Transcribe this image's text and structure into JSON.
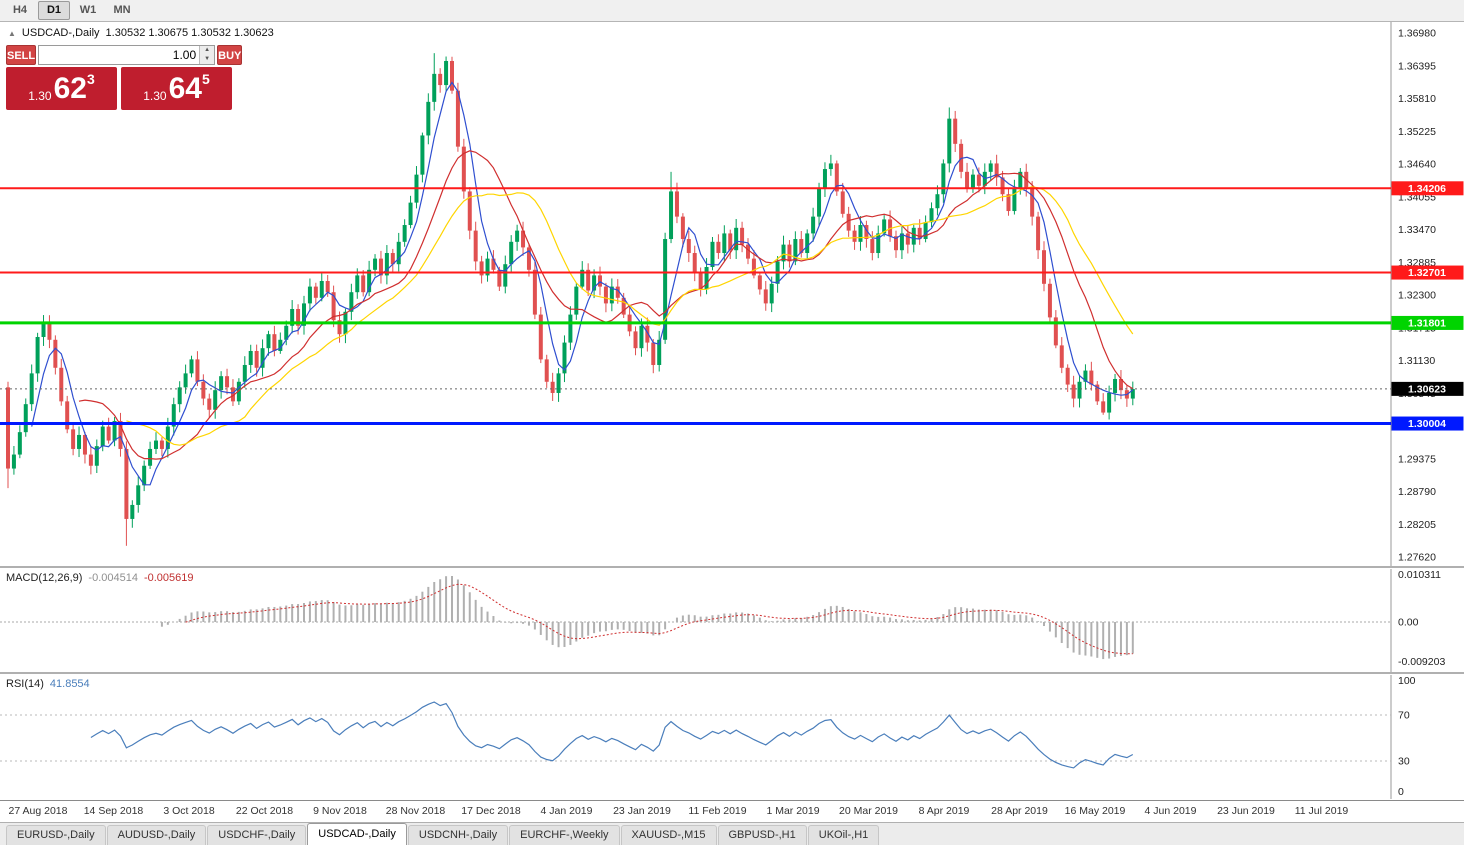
{
  "window": {
    "timeframes": [
      "H4",
      "D1",
      "W1",
      "MN"
    ],
    "active_timeframe": "D1"
  },
  "chart": {
    "header": {
      "icon": "collapse-triangle",
      "symbol": "USDCAD-,Daily",
      "ohlc": "1.30532 1.30675 1.30532 1.30623"
    },
    "trade_panel": {
      "sell_label": "SELL",
      "buy_label": "BUY",
      "volume": "1.00",
      "sell_price": {
        "small": "1.30",
        "big": "62",
        "sup": "3"
      },
      "buy_price": {
        "small": "1.30",
        "big": "64",
        "sup": "5"
      }
    }
  },
  "chart_data": {
    "type": "candlestick",
    "title": "USDCAD-,Daily",
    "x_labels": [
      "27 Aug 2018",
      "14 Sep 2018",
      "3 Oct 2018",
      "22 Oct 2018",
      "9 Nov 2018",
      "28 Nov 2018",
      "17 Dec 2018",
      "4 Jan 2019",
      "23 Jan 2019",
      "11 Feb 2019",
      "1 Mar 2019",
      "20 Mar 2019",
      "8 Apr 2019",
      "28 Apr 2019",
      "16 May 2019",
      "4 Jun 2019",
      "23 Jun 2019",
      "11 Jul 2019"
    ],
    "price_axis": {
      "top_value": 1.3698,
      "step": 0.00585,
      "labels": [
        "1.36980",
        "1.36395",
        "1.35810",
        "1.35225",
        "1.34640",
        "1.34055",
        "1.33470",
        "1.32885",
        "1.32300",
        "1.31715",
        "1.31130",
        "1.30545",
        "1.29960",
        "1.29375",
        "1.28790",
        "1.28205",
        "1.27620"
      ]
    },
    "candles": {
      "first_open": 1.3065,
      "closes": [
        1.292,
        1.2945,
        1.2985,
        1.3035,
        1.309,
        1.3155,
        1.318,
        1.315,
        1.31,
        1.304,
        1.299,
        1.2955,
        1.298,
        1.2945,
        1.2925,
        1.296,
        1.2995,
        1.297,
        1.3005,
        1.2955,
        1.283,
        1.2855,
        1.289,
        1.2925,
        1.2955,
        1.297,
        1.2955,
        1.2995,
        1.3035,
        1.3065,
        1.309,
        1.3115,
        1.3075,
        1.3045,
        1.3025,
        1.306,
        1.3085,
        1.3065,
        1.304,
        1.3075,
        1.3105,
        1.313,
        1.31,
        1.3135,
        1.316,
        1.313,
        1.315,
        1.3175,
        1.3205,
        1.3175,
        1.3215,
        1.3245,
        1.3225,
        1.3255,
        1.3235,
        1.3185,
        1.316,
        1.32,
        1.3235,
        1.3265,
        1.3235,
        1.3275,
        1.3295,
        1.3265,
        1.3305,
        1.3285,
        1.3325,
        1.3355,
        1.3395,
        1.3445,
        1.3515,
        1.3575,
        1.3625,
        1.3605,
        1.3648,
        1.3595,
        1.3495,
        1.3415,
        1.3345,
        1.329,
        1.3265,
        1.3295,
        1.3275,
        1.3245,
        1.3285,
        1.3325,
        1.3345,
        1.3315,
        1.3275,
        1.3195,
        1.3115,
        1.3075,
        1.3055,
        1.309,
        1.3145,
        1.3195,
        1.3245,
        1.3275,
        1.3238,
        1.3265,
        1.3245,
        1.3215,
        1.3245,
        1.3225,
        1.3195,
        1.3165,
        1.3135,
        1.3175,
        1.3145,
        1.3105,
        1.315,
        1.333,
        1.3415,
        1.337,
        1.333,
        1.3305,
        1.327,
        1.324,
        1.328,
        1.3325,
        1.3305,
        1.334,
        1.331,
        1.335,
        1.332,
        1.3295,
        1.3265,
        1.324,
        1.3215,
        1.325,
        1.329,
        1.332,
        1.329,
        1.333,
        1.3305,
        1.334,
        1.337,
        1.342,
        1.3455,
        1.3465,
        1.3415,
        1.3375,
        1.3345,
        1.3325,
        1.3355,
        1.333,
        1.3305,
        1.334,
        1.3365,
        1.3335,
        1.331,
        1.334,
        1.332,
        1.335,
        1.333,
        1.336,
        1.3385,
        1.341,
        1.3465,
        1.3545,
        1.35,
        1.345,
        1.342,
        1.3445,
        1.3425,
        1.345,
        1.3465,
        1.344,
        1.341,
        1.338,
        1.342,
        1.345,
        1.342,
        1.337,
        1.331,
        1.325,
        1.319,
        1.314,
        1.31,
        1.307,
        1.3045,
        1.3075,
        1.3095,
        1.307,
        1.304,
        1.302,
        1.3055,
        1.308,
        1.306,
        1.3045,
        1.3062
      ],
      "wick_overrides": {
        "0": {
          "high": 1.3075,
          "low": 1.2885
        },
        "20": {
          "low": 1.2782
        },
        "72": {
          "high": 1.3662
        },
        "74": {
          "high": 1.3656
        },
        "112": {
          "high": 1.345
        },
        "159": {
          "high": 1.3565
        },
        "185": {
          "low": 1.3016
        }
      }
    },
    "moving_averages": [
      {
        "period": 5,
        "color": "#2f4fd0"
      },
      {
        "period": 13,
        "color": "#d02f2f"
      },
      {
        "period": 21,
        "color": "#ffd500"
      }
    ],
    "hlines": [
      {
        "label": "1.34206",
        "price": 1.34206,
        "color": "#ff1a1a",
        "width": 2
      },
      {
        "label": "1.32701",
        "price": 1.32701,
        "color": "#ff1a1a",
        "width": 2
      },
      {
        "label": "1.31801",
        "price": 1.31801,
        "color": "#00d400",
        "width": 3
      },
      {
        "label": "1.30004",
        "price": 1.30004,
        "color": "#0019ff",
        "width": 3
      }
    ],
    "current_price": {
      "value": 1.30623,
      "label": "1.30623"
    },
    "indicators": {
      "macd": {
        "label": "MACD(12,26,9)",
        "value_main": "-0.004514",
        "value_signal": "-0.005619",
        "axis_labels": [
          "0.010311",
          "0.00",
          "-0.009203"
        ]
      },
      "rsi": {
        "label": "RSI(14)",
        "value": "41.8554",
        "axis_labels": [
          100,
          70,
          30,
          0
        ],
        "level_lines": [
          70,
          30
        ]
      }
    }
  },
  "tabs": [
    {
      "label": "EURUSD-,Daily",
      "active": false
    },
    {
      "label": "AUDUSD-,Daily",
      "active": false
    },
    {
      "label": "USDCHF-,Daily",
      "active": false
    },
    {
      "label": "USDCAD-,Daily",
      "active": true
    },
    {
      "label": "USDCNH-,Daily",
      "active": false
    },
    {
      "label": "EURCHF-,Weekly",
      "active": false
    },
    {
      "label": "XAUUSD-,M15",
      "active": false
    },
    {
      "label": "GBPUSD-,H1",
      "active": false
    },
    {
      "label": "UKOil-,H1",
      "active": false
    }
  ],
  "colors": {
    "bull": "#00a05a",
    "bear": "#e05050",
    "macd_hist": "#b0b0b0",
    "macd_signal": "#d03030",
    "rsi_line": "#4a7ebb",
    "current_price_box": "#000000",
    "panel_red": "#bf1e2e",
    "button_red": "#d24444"
  }
}
